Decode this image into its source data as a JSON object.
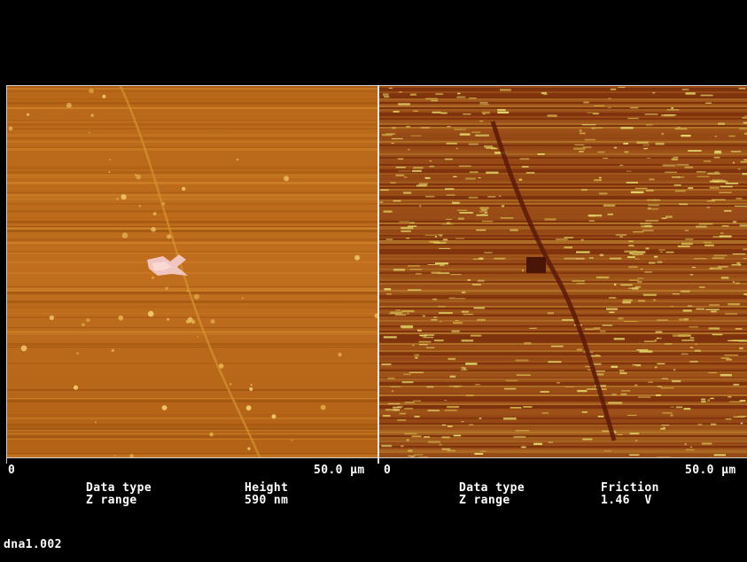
{
  "left_panel": {
    "axis_start": "0",
    "axis_end": "50.0 µm",
    "data_type_label": "Data type",
    "data_type_value": "Height",
    "z_range_label": "Z range",
    "z_range_value": "590 nm",
    "image_type": "height-map"
  },
  "right_panel": {
    "axis_start": "0",
    "axis_end": "50.0 µm",
    "data_type_label": "Data type",
    "data_type_value": "Friction",
    "z_range_label": "Z range",
    "z_range_value": "1.46  V",
    "image_type": "friction-map"
  },
  "filename": "dna1.002",
  "colors": {
    "background": "#000000",
    "text": "#ffffff",
    "height_base": "#b8661a",
    "height_highlight": "#f2c8b8",
    "friction_base": "#8e3d10",
    "friction_highlight": "#e8e070"
  }
}
